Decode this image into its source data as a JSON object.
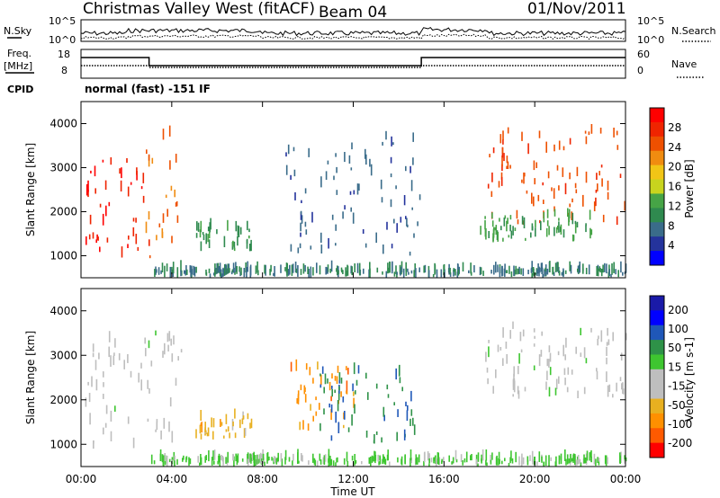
{
  "header": {
    "title": "Christmas Valley West (fitACF)",
    "beam": "Beam 04",
    "date": "01/Nov/2011",
    "cpid_label": "CPID",
    "cpid_value": "normal (fast) -151 IF"
  },
  "panels": {
    "nsky": {
      "left_label": "N.Sky",
      "left_ticks": [
        "10^5",
        "10^0"
      ],
      "right_label": "N.Search",
      "right_ticks": [
        "10^5",
        "10^0"
      ]
    },
    "freq": {
      "left_label_1": "Freq.",
      "left_label_2": "[MHz]",
      "left_ticks": [
        "18",
        "8"
      ],
      "right_label": "Nave",
      "right_ticks": [
        "60",
        "0"
      ]
    }
  },
  "colors": {
    "power": [
      "#0000ff",
      "#24339c",
      "#3a6c8a",
      "#2f8a4f",
      "#46a446",
      "#c8d41e",
      "#f1c516",
      "#f08c10",
      "#ee5000",
      "#ef2400",
      "#ff0000"
    ],
    "velocity": [
      "#ff0000",
      "#ff5a00",
      "#ff9000",
      "#e8b020",
      "#bebebe",
      "#bebebe",
      "#3ec630",
      "#2e9248",
      "#1f57b8",
      "#0000ff",
      "#1a1aa8"
    ]
  },
  "chart_data": [
    {
      "type": "heatmap",
      "title": "Power",
      "xlabel": "Time UT",
      "ylabel": "Slant Range [km]",
      "xticks": [
        "00:00",
        "04:00",
        "08:00",
        "12:00",
        "16:00",
        "20:00",
        "00:00"
      ],
      "yticks": [
        1000,
        2000,
        3000,
        4000
      ],
      "ylim": [
        500,
        4500
      ],
      "colorbar": {
        "label": "Power [dB]",
        "ticks": [
          4,
          8,
          12,
          16,
          20,
          24,
          28
        ]
      },
      "regions": [
        {
          "t": [
            0.0,
            3.0
          ],
          "r": [
            950,
            3300
          ],
          "value": 30
        },
        {
          "t": [
            2.8,
            4.5
          ],
          "r": [
            900,
            3800
          ],
          "value": 24
        },
        {
          "t": [
            5.0,
            7.5
          ],
          "r": [
            1100,
            1600
          ],
          "value": 10
        },
        {
          "t": [
            9.0,
            15.0
          ],
          "r": [
            1000,
            3700
          ],
          "value": 6
        },
        {
          "t": [
            17.8,
            24.0
          ],
          "r": [
            1700,
            3800
          ],
          "value": 26
        },
        {
          "t": [
            17.5,
            22.5
          ],
          "r": [
            1300,
            1900
          ],
          "value": 12
        },
        {
          "t": [
            3.0,
            24.0
          ],
          "r": [
            500,
            650
          ],
          "value": 8
        }
      ]
    },
    {
      "type": "heatmap",
      "title": "Velocity",
      "xlabel": "Time UT",
      "ylabel": "Slant Range [km]",
      "xticks": [
        "00:00",
        "04:00",
        "08:00",
        "12:00",
        "16:00",
        "20:00",
        "00:00"
      ],
      "yticks": [
        1000,
        2000,
        3000,
        4000
      ],
      "ylim": [
        500,
        4500
      ],
      "colorbar": {
        "label": "Velocity [m s-1]",
        "ticks": [
          200,
          100,
          50,
          15,
          -15,
          -50,
          -100,
          -200
        ]
      },
      "regions": [
        {
          "t": [
            0.0,
            3.0
          ],
          "r": [
            900,
            3300
          ],
          "value": 0
        },
        {
          "t": [
            3.0,
            4.5
          ],
          "r": [
            900,
            3500
          ],
          "value": 0
        },
        {
          "t": [
            5.0,
            7.5
          ],
          "r": [
            1100,
            1600
          ],
          "value": -100
        },
        {
          "t": [
            9.0,
            12.0
          ],
          "r": [
            1300,
            2700
          ],
          "value": -150
        },
        {
          "t": [
            10.5,
            15.0
          ],
          "r": [
            1000,
            2600
          ],
          "value": 120
        },
        {
          "t": [
            17.8,
            24.0
          ],
          "r": [
            2000,
            3600
          ],
          "value": 5
        },
        {
          "t": [
            3.0,
            24.0
          ],
          "r": [
            500,
            650
          ],
          "value": 40
        }
      ]
    }
  ]
}
